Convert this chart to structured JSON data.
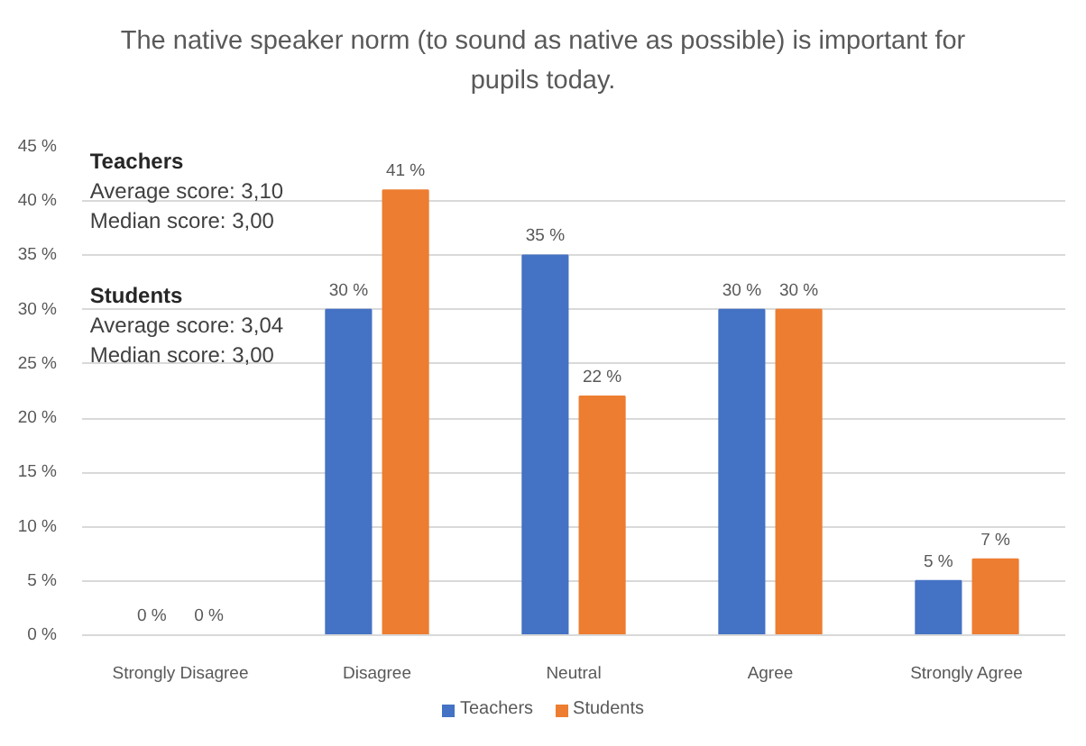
{
  "chart_data": {
    "type": "bar",
    "title": "The native speaker norm (to sound as native as possible) is important for pupils today.",
    "categories": [
      "Strongly Disagree",
      "Disagree",
      "Neutral",
      "Agree",
      "Strongly Agree"
    ],
    "series": [
      {
        "name": "Teachers",
        "color": "#4472c4",
        "values": [
          0,
          30,
          35,
          30,
          5
        ],
        "value_labels": [
          "0 %",
          "30 %",
          "35 %",
          "30 %",
          "5 %"
        ]
      },
      {
        "name": "Students",
        "color": "#ed7d31",
        "values": [
          0,
          41,
          22,
          30,
          7
        ],
        "value_labels": [
          "0 %",
          "41 %",
          "22 %",
          "30 %",
          "7 %"
        ]
      }
    ],
    "ylim": [
      0,
      45
    ],
    "yticks": [
      {
        "value": 0,
        "label": "0 %"
      },
      {
        "value": 5,
        "label": "5 %"
      },
      {
        "value": 10,
        "label": "10 %"
      },
      {
        "value": 15,
        "label": "15 %"
      },
      {
        "value": 20,
        "label": "20 %"
      },
      {
        "value": 25,
        "label": "25 %"
      },
      {
        "value": 30,
        "label": "30 %"
      },
      {
        "value": 35,
        "label": "35 %"
      },
      {
        "value": 40,
        "label": "40 %"
      },
      {
        "value": 45,
        "label": "45 %"
      }
    ],
    "grid": "y",
    "legend": "bottom",
    "annotations": [
      "Teachers\nAverage score: 3,10\nMedian score: 3,00",
      "Students\nAverage score: 3,04\nMedian score: 3,00"
    ]
  }
}
